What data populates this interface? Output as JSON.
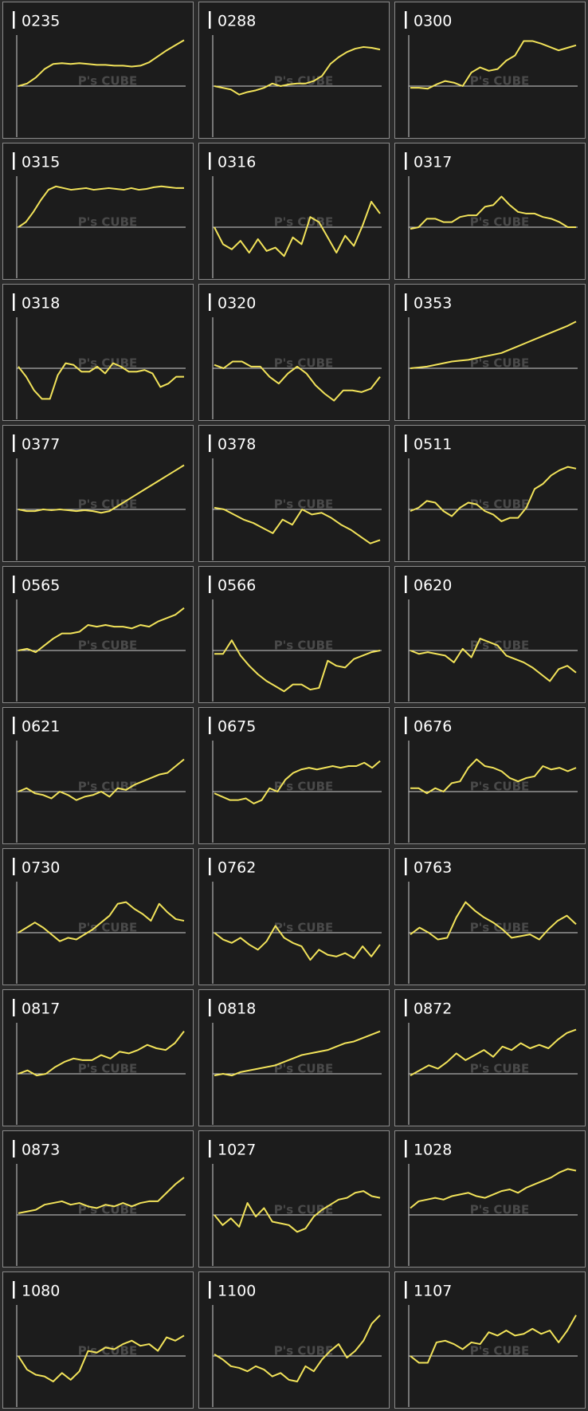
{
  "watermark": "P's CUBE",
  "chart_data": [
    {
      "type": "line",
      "title": "0235",
      "color": "#f2e35a",
      "ylim": [
        -60,
        60
      ],
      "values": [
        0,
        3,
        10,
        20,
        26,
        27,
        26,
        27,
        26,
        25,
        25,
        24,
        24,
        23,
        24,
        28,
        35,
        42,
        48,
        54
      ]
    },
    {
      "type": "line",
      "title": "0288",
      "color": "#f2e35a",
      "ylim": [
        -60,
        60
      ],
      "values": [
        0,
        -2,
        -4,
        -10,
        -7,
        -5,
        -2,
        3,
        0,
        2,
        3,
        3,
        6,
        12,
        26,
        34,
        40,
        44,
        46,
        45,
        43
      ]
    },
    {
      "type": "line",
      "title": "0300",
      "color": "#f2e35a",
      "ylim": [
        -60,
        60
      ],
      "values": [
        -2,
        -2,
        -3,
        2,
        6,
        4,
        0,
        16,
        22,
        18,
        20,
        30,
        36,
        53,
        53,
        50,
        46,
        42,
        45,
        48
      ]
    },
    {
      "type": "line",
      "title": "0315",
      "color": "#f2e35a",
      "ylim": [
        -60,
        60
      ],
      "values": [
        0,
        6,
        18,
        32,
        44,
        48,
        46,
        44,
        45,
        46,
        44,
        45,
        46,
        45,
        44,
        46,
        44,
        45,
        47,
        48,
        47,
        46,
        46
      ]
    },
    {
      "type": "line",
      "title": "0316",
      "color": "#f2e35a",
      "ylim": [
        -60,
        60
      ],
      "values": [
        0,
        -20,
        -26,
        -16,
        -30,
        -14,
        -28,
        -24,
        -34,
        -12,
        -20,
        12,
        6,
        -12,
        -30,
        -10,
        -22,
        2,
        30,
        16
      ]
    },
    {
      "type": "line",
      "title": "0317",
      "color": "#f2e35a",
      "ylim": [
        -60,
        60
      ],
      "values": [
        -2,
        0,
        10,
        10,
        6,
        6,
        12,
        14,
        14,
        24,
        26,
        36,
        26,
        18,
        16,
        16,
        12,
        10,
        6,
        0,
        0
      ]
    },
    {
      "type": "line",
      "title": "0318",
      "color": "#f2e35a",
      "ylim": [
        -60,
        60
      ],
      "values": [
        2,
        -10,
        -26,
        -36,
        -36,
        -8,
        6,
        4,
        -4,
        -4,
        2,
        -6,
        6,
        2,
        -4,
        -4,
        -2,
        -6,
        -22,
        -18,
        -10,
        -10
      ]
    },
    {
      "type": "line",
      "title": "0320",
      "color": "#f2e35a",
      "ylim": [
        -60,
        60
      ],
      "values": [
        4,
        0,
        8,
        8,
        2,
        2,
        -10,
        -18,
        -6,
        2,
        -6,
        -20,
        -30,
        -38,
        -26,
        -26,
        -28,
        -24,
        -10
      ]
    },
    {
      "type": "line",
      "title": "0353",
      "color": "#f2e35a",
      "ylim": [
        -60,
        60
      ],
      "values": [
        0,
        1,
        2,
        4,
        6,
        8,
        9,
        10,
        12,
        14,
        16,
        18,
        22,
        26,
        30,
        34,
        38,
        42,
        46,
        50,
        55
      ]
    },
    {
      "type": "line",
      "title": "0377",
      "color": "#f2e35a",
      "ylim": [
        -60,
        60
      ],
      "values": [
        0,
        -2,
        -2,
        0,
        -1,
        0,
        -1,
        -2,
        -1,
        -2,
        -4,
        -2,
        4,
        10,
        16,
        22,
        28,
        34,
        40,
        46,
        52
      ]
    },
    {
      "type": "line",
      "title": "0378",
      "color": "#f2e35a",
      "ylim": [
        -60,
        60
      ],
      "values": [
        2,
        0,
        -6,
        -12,
        -16,
        -22,
        -28,
        -12,
        -18,
        0,
        -6,
        -4,
        -10,
        -18,
        -24,
        -32,
        -40,
        -36
      ]
    },
    {
      "type": "line",
      "title": "0511",
      "color": "#f2e35a",
      "ylim": [
        -60,
        60
      ],
      "values": [
        -2,
        2,
        10,
        8,
        -2,
        -8,
        2,
        8,
        6,
        -2,
        -6,
        -14,
        -10,
        -10,
        2,
        24,
        30,
        40,
        46,
        50,
        48
      ]
    },
    {
      "type": "line",
      "title": "0565",
      "color": "#f2e35a",
      "ylim": [
        -60,
        60
      ],
      "values": [
        0,
        2,
        -2,
        6,
        14,
        20,
        20,
        22,
        30,
        28,
        30,
        28,
        28,
        26,
        30,
        28,
        34,
        38,
        42,
        50
      ]
    },
    {
      "type": "line",
      "title": "0566",
      "color": "#f2e35a",
      "ylim": [
        -60,
        60
      ],
      "values": [
        -4,
        -4,
        12,
        -6,
        -18,
        -28,
        -36,
        -42,
        -48,
        -40,
        -40,
        -46,
        -44,
        -12,
        -18,
        -20,
        -10,
        -6,
        -2,
        0
      ]
    },
    {
      "type": "line",
      "title": "0620",
      "color": "#f2e35a",
      "ylim": [
        -60,
        60
      ],
      "values": [
        0,
        -4,
        -2,
        -4,
        -6,
        -14,
        2,
        -8,
        14,
        10,
        6,
        -6,
        -10,
        -14,
        -20,
        -28,
        -36,
        -22,
        -18,
        -26
      ]
    },
    {
      "type": "line",
      "title": "0621",
      "color": "#f2e35a",
      "ylim": [
        -60,
        60
      ],
      "values": [
        0,
        4,
        -2,
        -4,
        -8,
        0,
        -4,
        -10,
        -6,
        -4,
        0,
        -6,
        4,
        2,
        8,
        12,
        16,
        20,
        22,
        30,
        38
      ]
    },
    {
      "type": "line",
      "title": "0675",
      "color": "#f2e35a",
      "ylim": [
        -60,
        60
      ],
      "values": [
        -2,
        -6,
        -10,
        -10,
        -8,
        -14,
        -10,
        4,
        0,
        14,
        22,
        26,
        28,
        26,
        28,
        30,
        28,
        30,
        30,
        34,
        28,
        36
      ]
    },
    {
      "type": "line",
      "title": "0676",
      "color": "#f2e35a",
      "ylim": [
        -60,
        60
      ],
      "values": [
        4,
        4,
        -2,
        4,
        0,
        10,
        12,
        28,
        38,
        30,
        28,
        24,
        16,
        12,
        16,
        18,
        30,
        26,
        28,
        24,
        28
      ]
    },
    {
      "type": "line",
      "title": "0730",
      "color": "#f2e35a",
      "ylim": [
        -60,
        60
      ],
      "values": [
        0,
        6,
        12,
        6,
        -2,
        -10,
        -6,
        -8,
        -2,
        4,
        12,
        20,
        34,
        36,
        28,
        22,
        14,
        34,
        24,
        16,
        14
      ]
    },
    {
      "type": "line",
      "title": "0762",
      "color": "#f2e35a",
      "ylim": [
        -60,
        60
      ],
      "values": [
        0,
        -8,
        -12,
        -6,
        -14,
        -20,
        -10,
        8,
        -6,
        -12,
        -16,
        -32,
        -20,
        -26,
        -28,
        -24,
        -30,
        -16,
        -28,
        -14
      ]
    },
    {
      "type": "line",
      "title": "0763",
      "color": "#f2e35a",
      "ylim": [
        -60,
        60
      ],
      "values": [
        -2,
        6,
        0,
        -8,
        -6,
        18,
        36,
        26,
        18,
        12,
        4,
        -6,
        -4,
        -2,
        -8,
        4,
        14,
        20,
        10
      ]
    },
    {
      "type": "line",
      "title": "0817",
      "color": "#f2e35a",
      "ylim": [
        -60,
        60
      ],
      "values": [
        0,
        4,
        -2,
        0,
        8,
        14,
        18,
        16,
        16,
        22,
        18,
        26,
        24,
        28,
        34,
        30,
        28,
        36,
        50
      ]
    },
    {
      "type": "line",
      "title": "0818",
      "color": "#f2e35a",
      "ylim": [
        -60,
        60
      ],
      "values": [
        -2,
        0,
        -2,
        2,
        4,
        6,
        8,
        10,
        14,
        18,
        22,
        24,
        26,
        28,
        32,
        36,
        38,
        42,
        46,
        50
      ]
    },
    {
      "type": "line",
      "title": "0872",
      "color": "#f2e35a",
      "ylim": [
        -60,
        60
      ],
      "values": [
        -2,
        4,
        10,
        6,
        14,
        24,
        16,
        22,
        28,
        20,
        32,
        28,
        36,
        30,
        34,
        30,
        40,
        48,
        52
      ]
    },
    {
      "type": "line",
      "title": "0873",
      "color": "#f2e35a",
      "ylim": [
        -60,
        60
      ],
      "values": [
        2,
        4,
        6,
        12,
        14,
        16,
        12,
        14,
        10,
        8,
        12,
        10,
        14,
        10,
        14,
        16,
        16,
        26,
        36,
        44
      ]
    },
    {
      "type": "line",
      "title": "1027",
      "color": "#f2e35a",
      "ylim": [
        -60,
        60
      ],
      "values": [
        0,
        -12,
        -4,
        -14,
        14,
        -2,
        8,
        -8,
        -10,
        -12,
        -20,
        -16,
        -2,
        6,
        12,
        18,
        20,
        26,
        28,
        22,
        20
      ]
    },
    {
      "type": "line",
      "title": "1028",
      "color": "#f2e35a",
      "ylim": [
        -60,
        60
      ],
      "values": [
        8,
        16,
        18,
        20,
        18,
        22,
        24,
        26,
        22,
        20,
        24,
        28,
        30,
        26,
        32,
        36,
        40,
        44,
        50,
        54,
        52
      ]
    },
    {
      "type": "line",
      "title": "1080",
      "color": "#f2e35a",
      "ylim": [
        -60,
        60
      ],
      "values": [
        0,
        -16,
        -22,
        -24,
        -30,
        -20,
        -28,
        -18,
        6,
        4,
        10,
        8,
        14,
        18,
        12,
        14,
        6,
        22,
        18,
        24
      ]
    },
    {
      "type": "line",
      "title": "1100",
      "color": "#f2e35a",
      "ylim": [
        -60,
        60
      ],
      "values": [
        2,
        -4,
        -12,
        -14,
        -18,
        -12,
        -16,
        -24,
        -20,
        -28,
        -30,
        -12,
        -18,
        -4,
        6,
        14,
        -2,
        6,
        18,
        38,
        48
      ]
    },
    {
      "type": "line",
      "title": "1107",
      "color": "#f2e35a",
      "ylim": [
        -60,
        60
      ],
      "values": [
        0,
        -8,
        -8,
        16,
        18,
        14,
        8,
        16,
        14,
        28,
        24,
        30,
        24,
        26,
        32,
        26,
        30,
        16,
        30,
        48
      ]
    }
  ]
}
